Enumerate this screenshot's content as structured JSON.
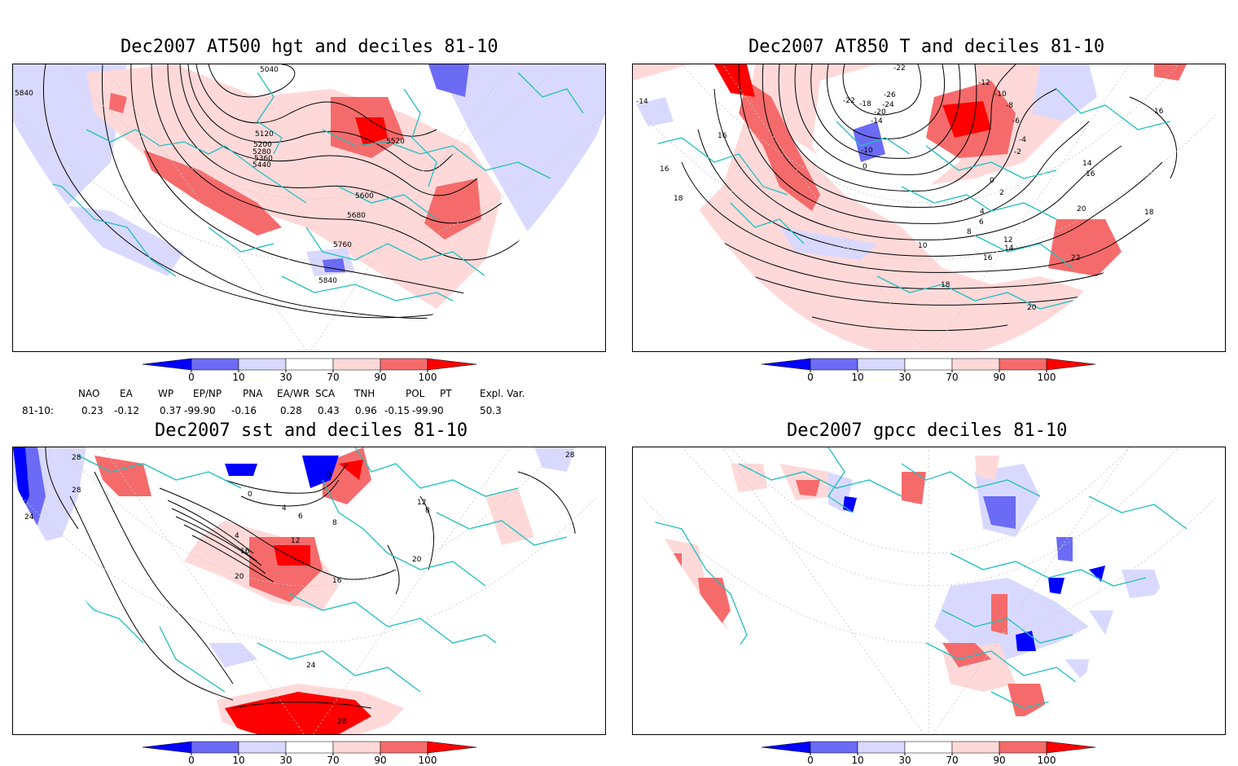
{
  "panels": [
    {
      "title": "Dec2007 AT500 hgt and deciles 81-10",
      "contour_labels": [
        "5040",
        "5120",
        "5200",
        "5280",
        "5360",
        "5440",
        "5520",
        "5600",
        "5680",
        "5760",
        "5840",
        "5840",
        "5840",
        "5360"
      ]
    },
    {
      "title": "Dec2007 AT850 T and deciles 81-10",
      "contour_labels": [
        "-22",
        "-22",
        "-26",
        "-24",
        "-18",
        "-20",
        "-14",
        "-12",
        "-10",
        "-8",
        "-6",
        "-4",
        "-2",
        "0",
        "2",
        "4",
        "6",
        "8",
        "10",
        "12",
        "14",
        "14",
        "16",
        "16",
        "16",
        "16",
        "16",
        "18",
        "18",
        "18",
        "20",
        "20",
        "22",
        "-14",
        "-10",
        "0"
      ]
    },
    {
      "title": "Dec2007 sst and deciles 81-10",
      "contour_labels": [
        "28",
        "28",
        "24",
        "28",
        "24",
        "0",
        "0",
        "4",
        "8",
        "12",
        "16",
        "20",
        "16",
        "12",
        "20",
        "28",
        "4",
        "6",
        "8"
      ]
    },
    {
      "title": "Dec2007 gpcc deciles 81-10",
      "contour_labels": []
    }
  ],
  "colorbar": {
    "tick_labels": [
      "0",
      "10",
      "30",
      "70",
      "90",
      "100"
    ],
    "colors": [
      "#0000ff",
      "#6b6bf5",
      "#d9d9ff",
      "#ffffff",
      "#ffd9d9",
      "#f56b6b",
      "#ff0000"
    ]
  },
  "indices": {
    "headers": [
      "NAO",
      "EA",
      "WP",
      "EP/NP",
      "PNA",
      "EA/WR",
      "SCA",
      "TNH",
      "POL",
      "PT",
      "Expl. Var."
    ],
    "row_label": "81-10:",
    "values": [
      "0.23",
      "-0.12",
      "0.37",
      "-99.90",
      "-0.16",
      "0.28",
      "0.43",
      "0.96",
      "-0.15",
      "-99.90",
      "50.3"
    ]
  }
}
